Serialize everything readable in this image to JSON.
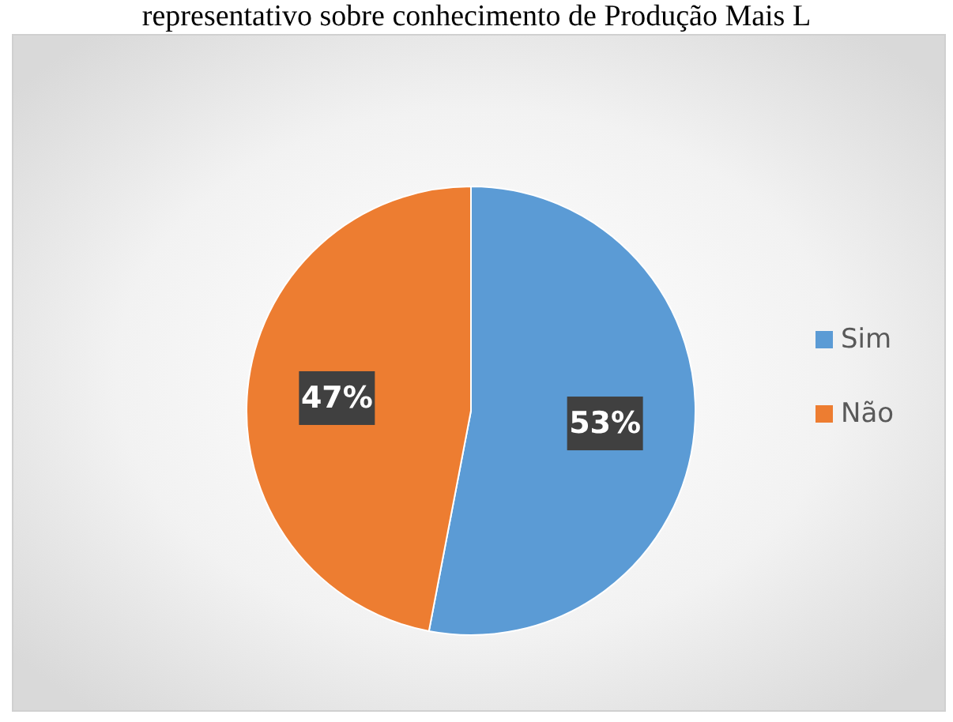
{
  "chart_data": {
    "type": "pie",
    "title": "representativo sobre conhecimento de Produção Mais L",
    "categories": [
      "Sim",
      "Não"
    ],
    "values": [
      53,
      47
    ],
    "colors": [
      "#5b9bd5",
      "#ed7d31"
    ],
    "value_labels": [
      "53%",
      "47%"
    ],
    "legend": "right"
  }
}
